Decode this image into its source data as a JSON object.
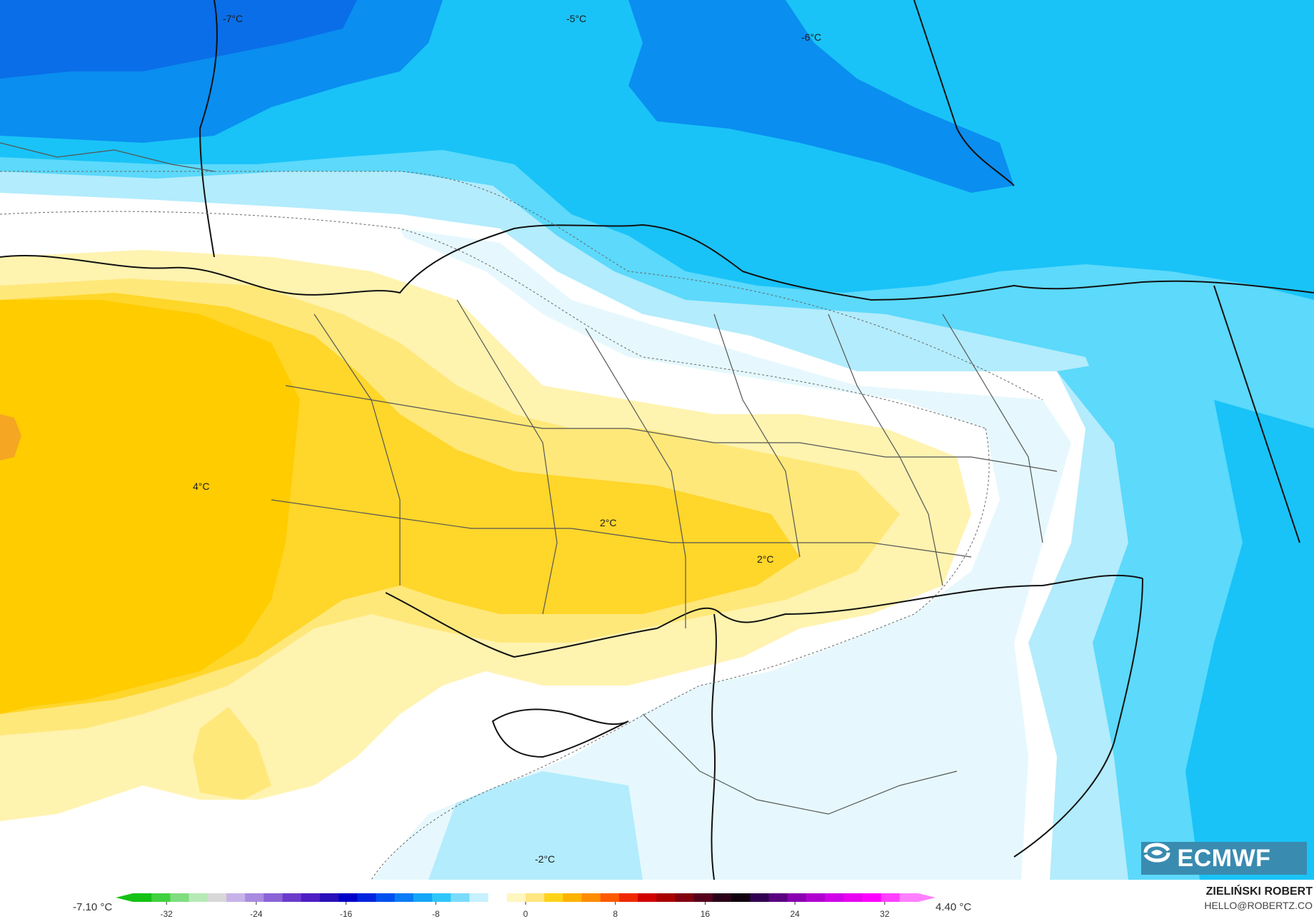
{
  "map": {
    "temperature_labels": [
      {
        "text": "-7°C"
      },
      {
        "text": "-5°C"
      },
      {
        "text": "-6°C"
      },
      {
        "text": "4°C"
      },
      {
        "text": "2°C"
      },
      {
        "text": "2°C"
      },
      {
        "text": "-2°C"
      }
    ],
    "colors": {
      "deep_blue": "#0a8ef0",
      "mid_blue": "#19c3f7",
      "light_blue": "#5cd9fb",
      "pale_blue": "#b3ecfc",
      "very_pale_blue": "#e6f8fd",
      "white": "#ffffff",
      "pale_yellow": "#fff3b0",
      "light_yellow": "#ffe87a",
      "yellow": "#ffd62a",
      "dark_yellow": "#ffcc00",
      "orange": "#f5a623"
    }
  },
  "logo": {
    "text": "ECMWF",
    "icon": "ecmwf-logo-icon"
  },
  "legend": {
    "min_label": "-7.10 °C",
    "max_label": "4.40 °C",
    "ticks": [
      "-32",
      "-24",
      "-16",
      "-8",
      "0",
      "8",
      "16",
      "24",
      "32"
    ],
    "tick_values": [
      -32,
      -24,
      -16,
      -8,
      0,
      8,
      16,
      24,
      32
    ],
    "range": [
      -35,
      35
    ],
    "colors": [
      "#14c214",
      "#3fd13f",
      "#7fdd7f",
      "#b7e9b7",
      "#d8d8d8",
      "#c7b3e8",
      "#a98be0",
      "#8a63d6",
      "#6b3bcc",
      "#4d1ec4",
      "#2a10b8",
      "#0000c8",
      "#0024e0",
      "#0050f0",
      "#0a7cf5",
      "#14a6f8",
      "#2ec6fa",
      "#7adcfc",
      "#c6f1fe",
      "#ffffff",
      "#fff6c0",
      "#ffe680",
      "#ffd31a",
      "#ffb300",
      "#ff8c00",
      "#ff5a00",
      "#f02800",
      "#d00000",
      "#a80000",
      "#800010",
      "#55001c",
      "#2a0018",
      "#10000c",
      "#300050",
      "#5a0080",
      "#8a00b0",
      "#b000d0",
      "#d000e8",
      "#e800f0",
      "#ff00ff",
      "#ff40ff",
      "#ff80ff"
    ]
  },
  "author": {
    "name": "ZIELIŃSKI ROBERT",
    "email": "HELLO@ROBERTZ.CO"
  }
}
